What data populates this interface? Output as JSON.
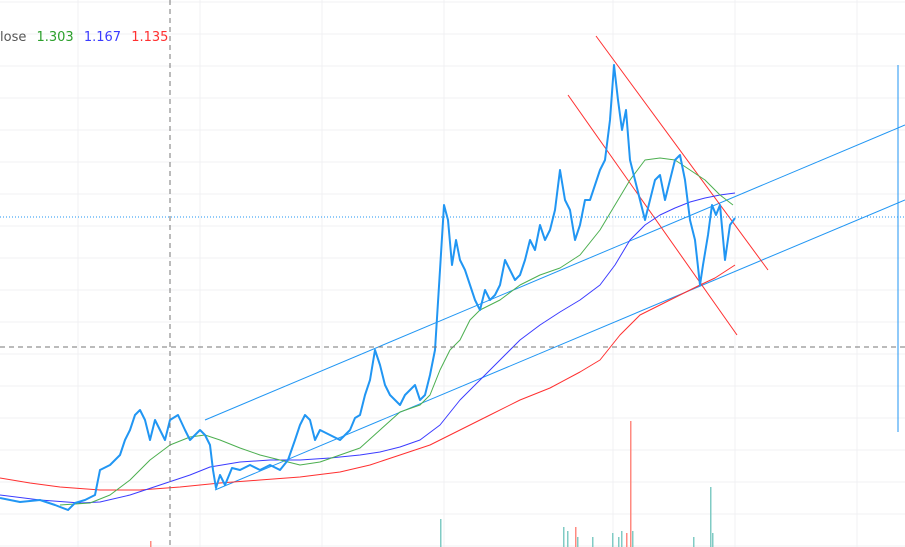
{
  "legend": {
    "label": "lose",
    "values": [
      {
        "text": "1.303",
        "color": "#2ca02c"
      },
      {
        "text": "1.167",
        "color": "#3b3bff"
      },
      {
        "text": "1.135",
        "color": "#ff3030"
      }
    ]
  },
  "chart_data": {
    "type": "line",
    "grid": true,
    "ylim": [
      0.53,
      6.0
    ],
    "xlim": [
      0,
      181
    ],
    "series": [
      {
        "key": "close",
        "color": "#2196f3",
        "points": [
          [
            0,
            1.02
          ],
          [
            4,
            0.98
          ],
          [
            8,
            1.0
          ],
          [
            11,
            0.95
          ],
          [
            13.6,
            0.9
          ],
          [
            15,
            0.97
          ],
          [
            17,
            1.0
          ],
          [
            19,
            1.05
          ],
          [
            20,
            1.3
          ],
          [
            22,
            1.35
          ],
          [
            24,
            1.45
          ],
          [
            25,
            1.6
          ],
          [
            26,
            1.7
          ],
          [
            27,
            1.85
          ],
          [
            28,
            1.9
          ],
          [
            29,
            1.8
          ],
          [
            30,
            1.6
          ],
          [
            31,
            1.8
          ],
          [
            32,
            1.7
          ],
          [
            33,
            1.6
          ],
          [
            34,
            1.8
          ],
          [
            35.6,
            1.85
          ],
          [
            37,
            1.7
          ],
          [
            38,
            1.6
          ],
          [
            40,
            1.7
          ],
          [
            41,
            1.65
          ],
          [
            42,
            1.55
          ],
          [
            42.6,
            1.3
          ],
          [
            43.2,
            1.12
          ],
          [
            44,
            1.25
          ],
          [
            45,
            1.15
          ],
          [
            46.4,
            1.32
          ],
          [
            48,
            1.3
          ],
          [
            50,
            1.35
          ],
          [
            52,
            1.3
          ],
          [
            54,
            1.35
          ],
          [
            56,
            1.3
          ],
          [
            57.6,
            1.4
          ],
          [
            59,
            1.6
          ],
          [
            60,
            1.75
          ],
          [
            61,
            1.85
          ],
          [
            62,
            1.8
          ],
          [
            63,
            1.6
          ],
          [
            64,
            1.7
          ],
          [
            66,
            1.65
          ],
          [
            68,
            1.6
          ],
          [
            70,
            1.7
          ],
          [
            71,
            1.82
          ],
          [
            72,
            1.85
          ],
          [
            73,
            2.05
          ],
          [
            74,
            2.2
          ],
          [
            75,
            2.5
          ],
          [
            76,
            2.35
          ],
          [
            77,
            2.15
          ],
          [
            78,
            2.05
          ],
          [
            79,
            2.0
          ],
          [
            80,
            1.95
          ],
          [
            81,
            2.05
          ],
          [
            82,
            2.1
          ],
          [
            83,
            2.15
          ],
          [
            84,
            2.0
          ],
          [
            85,
            2.05
          ],
          [
            86,
            2.25
          ],
          [
            87,
            2.5
          ],
          [
            88,
            3.3
          ],
          [
            88.8,
            3.95
          ],
          [
            89.6,
            3.8
          ],
          [
            90.4,
            3.35
          ],
          [
            91.2,
            3.6
          ],
          [
            92,
            3.4
          ],
          [
            93,
            3.3
          ],
          [
            94,
            3.15
          ],
          [
            95,
            3.0
          ],
          [
            96,
            2.9
          ],
          [
            97,
            3.1
          ],
          [
            98,
            3.0
          ],
          [
            99,
            3.05
          ],
          [
            100,
            3.15
          ],
          [
            101,
            3.4
          ],
          [
            102,
            3.3
          ],
          [
            103,
            3.2
          ],
          [
            104,
            3.25
          ],
          [
            105,
            3.4
          ],
          [
            106,
            3.6
          ],
          [
            107,
            3.5
          ],
          [
            108,
            3.75
          ],
          [
            109,
            3.6
          ],
          [
            110,
            3.7
          ],
          [
            111,
            3.9
          ],
          [
            112,
            4.3
          ],
          [
            113,
            4.0
          ],
          [
            114,
            3.9
          ],
          [
            115,
            3.6
          ],
          [
            116,
            3.75
          ],
          [
            117,
            4.0
          ],
          [
            118,
            4.0
          ],
          [
            119,
            4.15
          ],
          [
            120,
            4.3
          ],
          [
            121,
            4.4
          ],
          [
            122,
            4.8
          ],
          [
            122.8,
            5.35
          ],
          [
            123.6,
            5.0
          ],
          [
            124.4,
            4.7
          ],
          [
            125.2,
            4.9
          ],
          [
            126,
            4.4
          ],
          [
            127,
            4.2
          ],
          [
            128,
            4.0
          ],
          [
            129,
            3.8
          ],
          [
            130,
            4.0
          ],
          [
            131,
            4.2
          ],
          [
            132,
            4.25
          ],
          [
            133,
            4.0
          ],
          [
            134,
            4.2
          ],
          [
            135,
            4.4
          ],
          [
            136,
            4.45
          ],
          [
            137,
            4.2
          ],
          [
            138,
            3.8
          ],
          [
            139,
            3.6
          ],
          [
            140,
            3.15
          ],
          [
            140.6,
            3.35
          ],
          [
            141.6,
            3.65
          ],
          [
            142.4,
            3.95
          ],
          [
            143.2,
            3.85
          ],
          [
            144,
            3.95
          ],
          [
            145,
            3.4
          ],
          [
            146,
            3.75
          ],
          [
            147,
            3.82
          ]
        ]
      },
      {
        "key": "ma-green",
        "color": "#4caf50",
        "points": [
          [
            12,
            0.95
          ],
          [
            18,
            0.97
          ],
          [
            22,
            1.05
          ],
          [
            26,
            1.2
          ],
          [
            30,
            1.4
          ],
          [
            34,
            1.55
          ],
          [
            38,
            1.63
          ],
          [
            41,
            1.65
          ],
          [
            44,
            1.6
          ],
          [
            48,
            1.52
          ],
          [
            52,
            1.45
          ],
          [
            56,
            1.4
          ],
          [
            60,
            1.35
          ],
          [
            64,
            1.38
          ],
          [
            68,
            1.45
          ],
          [
            72,
            1.52
          ],
          [
            76,
            1.7
          ],
          [
            80,
            1.88
          ],
          [
            84,
            1.95
          ],
          [
            86,
            2.05
          ],
          [
            88,
            2.3
          ],
          [
            90,
            2.5
          ],
          [
            92,
            2.6
          ],
          [
            94,
            2.8
          ],
          [
            96,
            2.9
          ],
          [
            100,
            3.0
          ],
          [
            104,
            3.15
          ],
          [
            108,
            3.25
          ],
          [
            112,
            3.32
          ],
          [
            116,
            3.45
          ],
          [
            120,
            3.7
          ],
          [
            123,
            3.95
          ],
          [
            126,
            4.2
          ],
          [
            129,
            4.4
          ],
          [
            132,
            4.42
          ],
          [
            135,
            4.4
          ],
          [
            138,
            4.3
          ],
          [
            141,
            4.2
          ],
          [
            144,
            4.05
          ],
          [
            146.6,
            3.95
          ]
        ]
      },
      {
        "key": "ma-blue",
        "color": "#3b3bff",
        "points": [
          [
            0,
            1.05
          ],
          [
            8,
            1.0
          ],
          [
            16,
            0.97
          ],
          [
            20,
            0.98
          ],
          [
            26,
            1.05
          ],
          [
            32,
            1.15
          ],
          [
            38,
            1.25
          ],
          [
            42,
            1.33
          ],
          [
            48,
            1.38
          ],
          [
            54,
            1.4
          ],
          [
            60,
            1.4
          ],
          [
            66,
            1.42
          ],
          [
            72,
            1.45
          ],
          [
            76,
            1.48
          ],
          [
            80,
            1.53
          ],
          [
            84,
            1.6
          ],
          [
            88,
            1.75
          ],
          [
            92,
            2.0
          ],
          [
            96,
            2.2
          ],
          [
            100,
            2.4
          ],
          [
            104,
            2.6
          ],
          [
            108,
            2.75
          ],
          [
            112,
            2.88
          ],
          [
            116,
            3.0
          ],
          [
            120,
            3.15
          ],
          [
            123,
            3.35
          ],
          [
            126,
            3.6
          ],
          [
            129,
            3.75
          ],
          [
            132,
            3.85
          ],
          [
            135,
            3.92
          ],
          [
            138,
            3.98
          ],
          [
            141,
            4.02
          ],
          [
            144,
            4.05
          ],
          [
            147,
            4.07
          ]
        ]
      },
      {
        "key": "ma-red",
        "color": "#ff3030",
        "points": [
          [
            0,
            1.22
          ],
          [
            6,
            1.17
          ],
          [
            12,
            1.13
          ],
          [
            20,
            1.1
          ],
          [
            28,
            1.1
          ],
          [
            36,
            1.13
          ],
          [
            44,
            1.17
          ],
          [
            52,
            1.2
          ],
          [
            60,
            1.23
          ],
          [
            68,
            1.28
          ],
          [
            74,
            1.35
          ],
          [
            80,
            1.45
          ],
          [
            86,
            1.55
          ],
          [
            92,
            1.7
          ],
          [
            98,
            1.85
          ],
          [
            104,
            2.0
          ],
          [
            110,
            2.12
          ],
          [
            116,
            2.28
          ],
          [
            120,
            2.4
          ],
          [
            124,
            2.65
          ],
          [
            128,
            2.85
          ],
          [
            132,
            2.95
          ],
          [
            136,
            3.05
          ],
          [
            140,
            3.15
          ],
          [
            143,
            3.22
          ],
          [
            147,
            3.35
          ]
        ]
      }
    ],
    "drawings": [
      {
        "color": "#2196f3",
        "from": [
          41,
          1.8
        ],
        "to": [
          181,
          4.75
        ]
      },
      {
        "color": "#2196f3",
        "from": [
          43,
          1.1
        ],
        "to": [
          181,
          4.0
        ]
      },
      {
        "color": "#ff3030",
        "from": [
          119.2,
          5.64
        ],
        "to": [
          153.6,
          3.3
        ]
      },
      {
        "color": "#ff3030",
        "from": [
          113.6,
          5.05
        ],
        "to": [
          147.4,
          2.65
        ]
      },
      {
        "color": "#2196f3",
        "from": [
          179.6,
          5.35
        ],
        "to": [
          179.6,
          1.68
        ]
      }
    ],
    "last_price_line": 3.83,
    "crosshair": {
      "x": 34,
      "y": 2.53
    },
    "volume": [
      {
        "x": 30,
        "v": 3,
        "color": "#ff8a80"
      },
      {
        "x": 88,
        "v": 14,
        "color": "#80cbc4"
      },
      {
        "x": 112.6,
        "v": 10,
        "color": "#80cbc4"
      },
      {
        "x": 113.4,
        "v": 8,
        "color": "#80cbc4"
      },
      {
        "x": 115,
        "v": 10,
        "color": "#ff8a80"
      },
      {
        "x": 115.4,
        "v": 5,
        "color": "#80cbc4"
      },
      {
        "x": 118.4,
        "v": 5,
        "color": "#80cbc4"
      },
      {
        "x": 122.4,
        "v": 7,
        "color": "#80cbc4"
      },
      {
        "x": 123.6,
        "v": 5,
        "color": "#80cbc4"
      },
      {
        "x": 124.2,
        "v": 8,
        "color": "#80cbc4"
      },
      {
        "x": 125.2,
        "v": 7,
        "color": "#ff8a80"
      },
      {
        "x": 126,
        "v": 63,
        "color": "#ff8a80"
      },
      {
        "x": 126.4,
        "v": 8,
        "color": "#80cbc4"
      },
      {
        "x": 138.6,
        "v": 5,
        "color": "#80cbc4"
      },
      {
        "x": 142,
        "v": 30,
        "color": "#80cbc4"
      },
      {
        "x": 142.4,
        "v": 7,
        "color": "#80cbc4"
      }
    ]
  }
}
